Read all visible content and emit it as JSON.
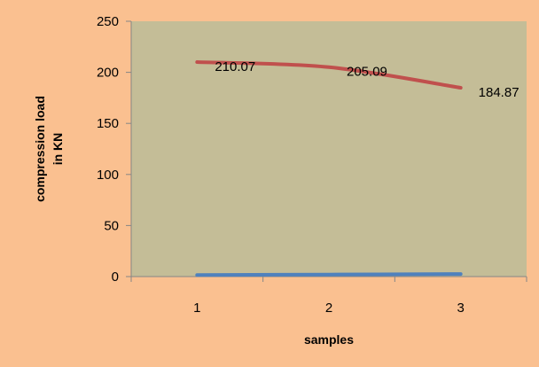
{
  "chart_data": {
    "type": "line",
    "title": "",
    "xlabel": "samples",
    "ylabel_lines": [
      "compression load",
      "in KN"
    ],
    "categories": [
      "1",
      "2",
      "3"
    ],
    "ylim": [
      0,
      250
    ],
    "yticks": [
      0,
      50,
      100,
      150,
      200,
      250
    ],
    "grid": false,
    "legend": "none",
    "series": [
      {
        "values": [
          210.07,
          205.09,
          184.87
        ],
        "color": "#c0504d",
        "data_labels": [
          "210.07",
          "205.09",
          "184.87"
        ]
      },
      {
        "values": [
          1.5,
          2.0,
          2.5
        ],
        "color": "#4f81bd",
        "data_labels": []
      }
    ],
    "colors": {
      "background": "#fac090",
      "plot_area": "#c4bd97",
      "axis": "#868686"
    }
  }
}
